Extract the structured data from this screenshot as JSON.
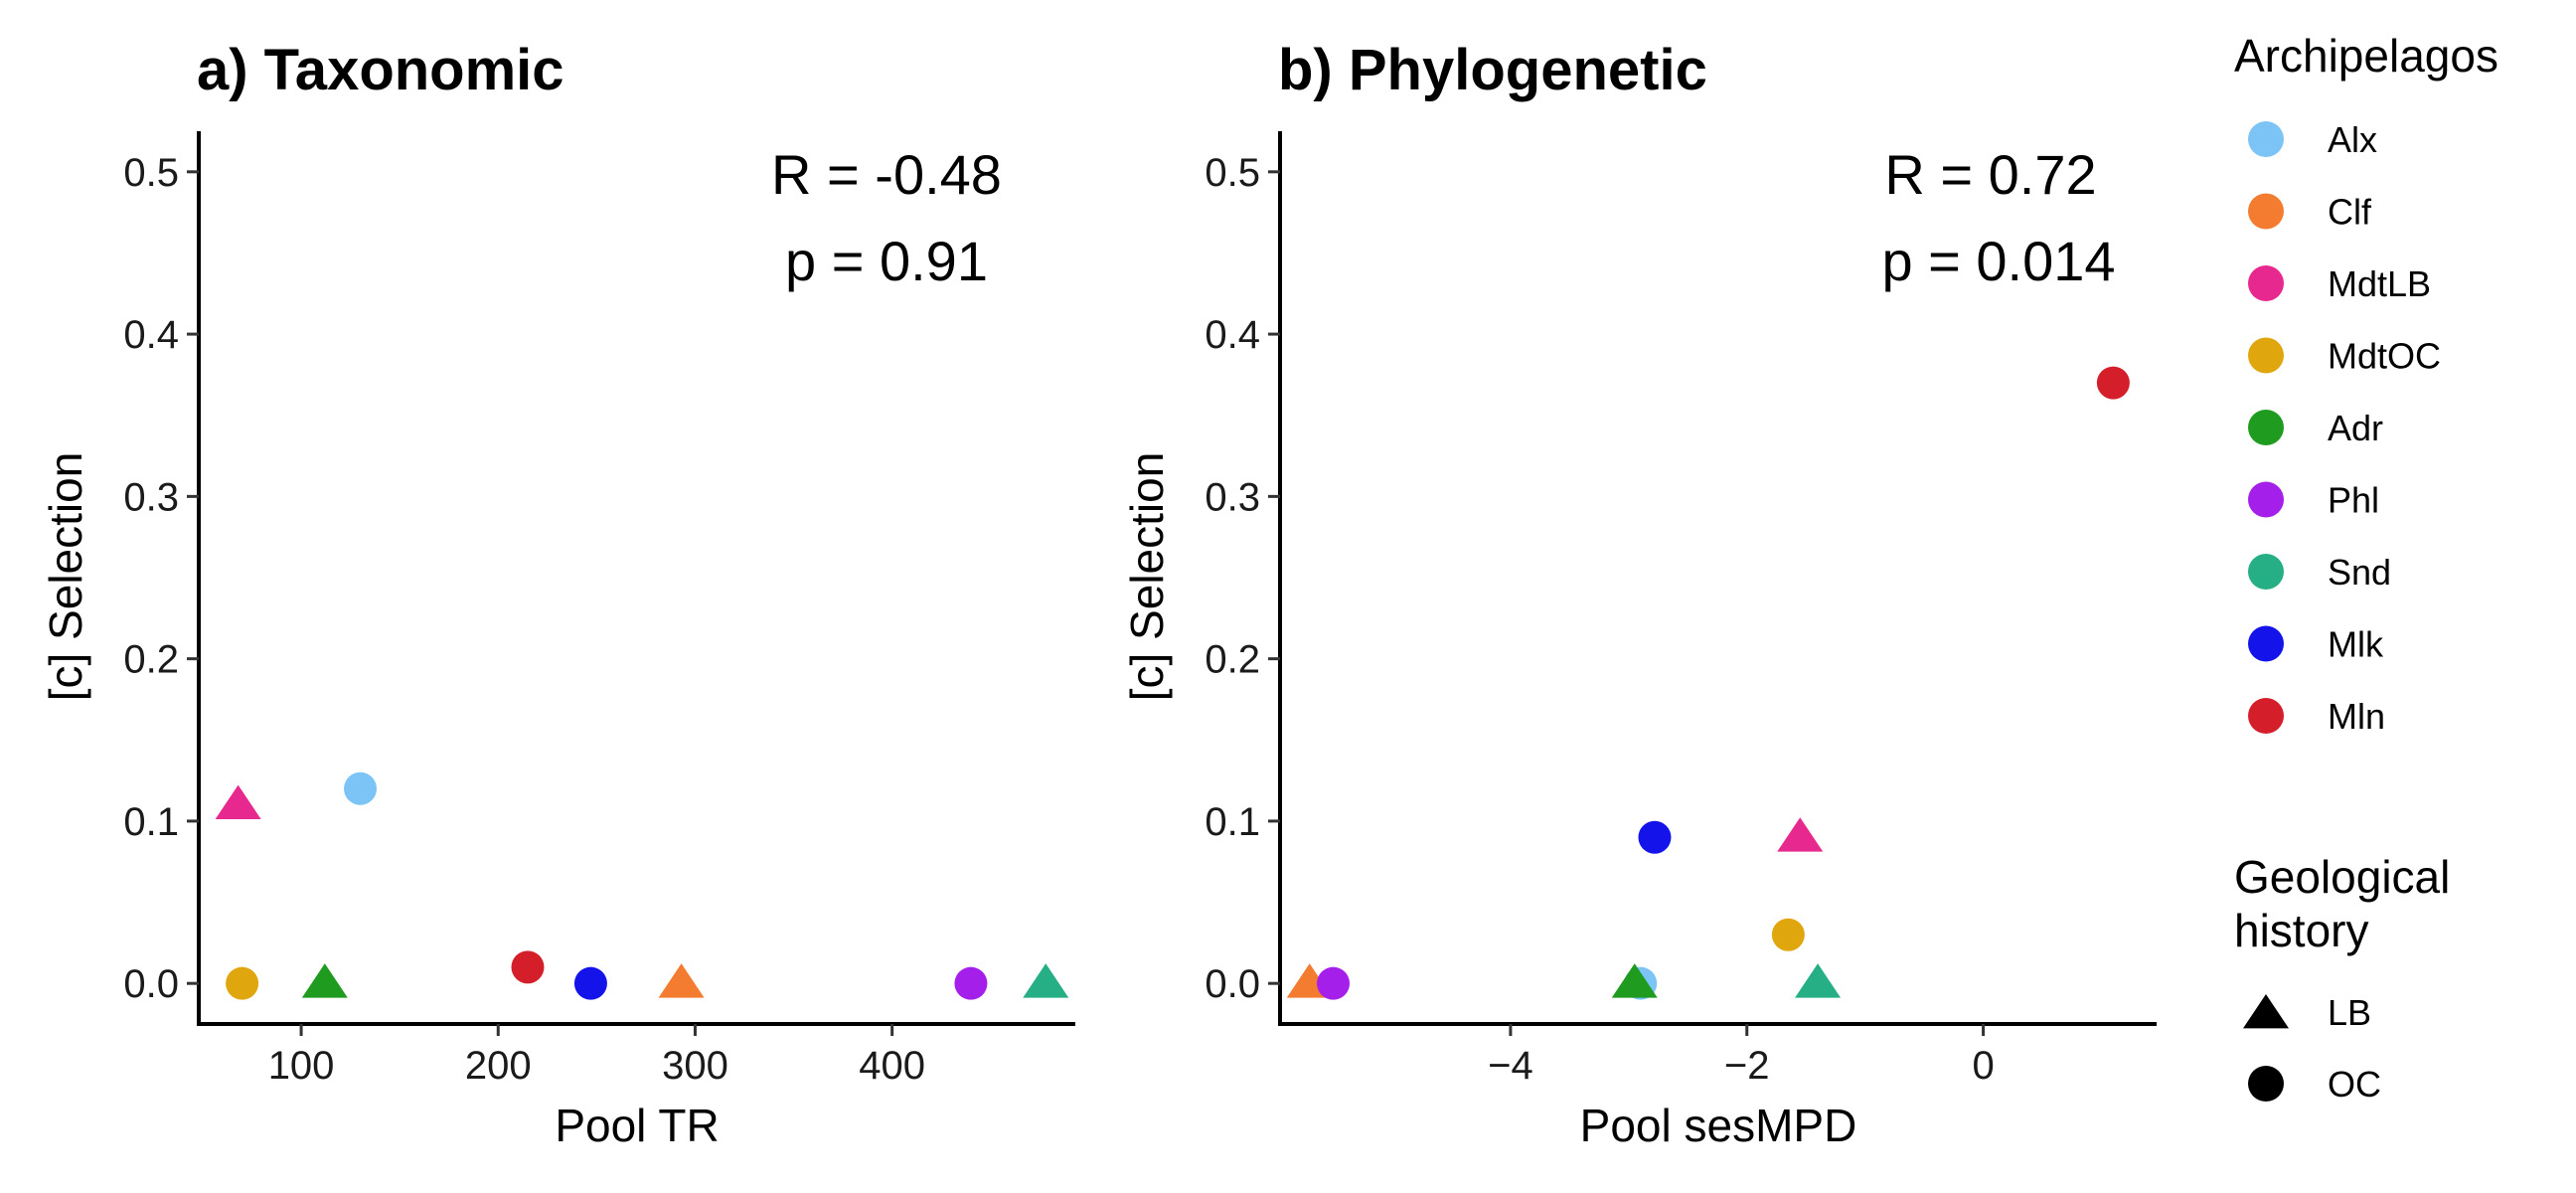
{
  "legend": {
    "archipelagos_title": "Archipelagos",
    "geology_title_line1": "Geological",
    "geology_title_line2": "history",
    "archipelagos": [
      {
        "name": "Alx",
        "color": "#7cc4f5"
      },
      {
        "name": "Clf",
        "color": "#f47c30"
      },
      {
        "name": "MdtLB",
        "color": "#e7288f"
      },
      {
        "name": "MdtOC",
        "color": "#e0a60e"
      },
      {
        "name": "Adr",
        "color": "#1f9b1f"
      },
      {
        "name": "Phl",
        "color": "#a420ea"
      },
      {
        "name": "Snd",
        "color": "#26ae84"
      },
      {
        "name": "Mlk",
        "color": "#1414ea"
      },
      {
        "name": "Mln",
        "color": "#d41f2b"
      }
    ],
    "geology": [
      {
        "name": "LB",
        "shape": "triangle"
      },
      {
        "name": "OC",
        "shape": "circle"
      }
    ]
  },
  "chart_data": [
    {
      "type": "scatter",
      "title": "a) Taxonomic",
      "xlabel": "Pool TR",
      "ylabel": "[c] Selection",
      "xlim": [
        48,
        492
      ],
      "ylim": [
        -0.025,
        0.525
      ],
      "xticks": [
        100,
        200,
        300,
        400
      ],
      "yticks": [
        0.0,
        0.1,
        0.2,
        0.3,
        0.4,
        0.5
      ],
      "grid": false,
      "annotation": {
        "r": "R = -0.48",
        "p": "p = 0.91"
      },
      "points": [
        {
          "archipelago": "MdtLB",
          "geology": "LB",
          "x": 68,
          "y": 0.11
        },
        {
          "archipelago": "Alx",
          "geology": "OC",
          "x": 130,
          "y": 0.12
        },
        {
          "archipelago": "MdtOC",
          "geology": "OC",
          "x": 70,
          "y": 0.0
        },
        {
          "archipelago": "Adr",
          "geology": "LB",
          "x": 112,
          "y": 0.0
        },
        {
          "archipelago": "Mln",
          "geology": "OC",
          "x": 215,
          "y": 0.01
        },
        {
          "archipelago": "Mlk",
          "geology": "OC",
          "x": 247,
          "y": 0.0
        },
        {
          "archipelago": "Clf",
          "geology": "LB",
          "x": 293,
          "y": 0.0
        },
        {
          "archipelago": "Phl",
          "geology": "OC",
          "x": 440,
          "y": 0.0
        },
        {
          "archipelago": "Snd",
          "geology": "LB",
          "x": 478,
          "y": 0.0
        }
      ]
    },
    {
      "type": "scatter",
      "title": "b) Phylogenetic",
      "xlabel": "Pool sesMPD",
      "ylabel": "[c] Selection",
      "xlim": [
        -5.95,
        1.45
      ],
      "ylim": [
        -0.025,
        0.525
      ],
      "xticks": [
        -4,
        -2,
        0
      ],
      "yticks": [
        0.0,
        0.1,
        0.2,
        0.3,
        0.4,
        0.5
      ],
      "grid": false,
      "annotation": {
        "r": "R = 0.72",
        "p": "p = 0.014"
      },
      "points": [
        {
          "archipelago": "Clf",
          "geology": "LB",
          "x": -5.7,
          "y": 0.0
        },
        {
          "archipelago": "Phl",
          "geology": "OC",
          "x": -5.5,
          "y": 0.0
        },
        {
          "archipelago": "Alx",
          "geology": "OC",
          "x": -2.9,
          "y": 0.0
        },
        {
          "archipelago": "Adr",
          "geology": "LB",
          "x": -2.95,
          "y": 0.0
        },
        {
          "archipelago": "Mlk",
          "geology": "OC",
          "x": -2.78,
          "y": 0.09
        },
        {
          "archipelago": "MdtOC",
          "geology": "OC",
          "x": -1.65,
          "y": 0.03
        },
        {
          "archipelago": "MdtLB",
          "geology": "LB",
          "x": -1.55,
          "y": 0.09
        },
        {
          "archipelago": "Snd",
          "geology": "LB",
          "x": -1.4,
          "y": 0.0
        },
        {
          "archipelago": "Mln",
          "geology": "OC",
          "x": 1.1,
          "y": 0.37
        }
      ]
    }
  ]
}
